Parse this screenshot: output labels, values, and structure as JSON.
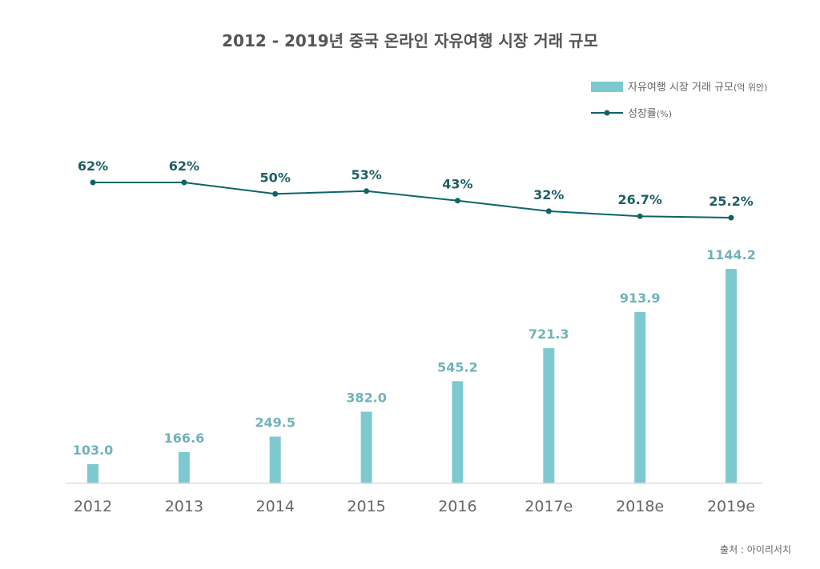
{
  "colors": {
    "bar": "#7ec9d0",
    "line": "#0e6468",
    "bar_label": "#6fb3b9",
    "line_label": "#1d5f64",
    "axis": "#dddddd",
    "text": "#555555"
  },
  "chart_data": {
    "type": "bar",
    "title": "2012 - 2019년 중국 온라인 자유여행 시장 거래 규모",
    "categories": [
      "2012",
      "2013",
      "2014",
      "2015",
      "2016",
      "2017e",
      "2018e",
      "2019e"
    ],
    "series": [
      {
        "name": "자유여행 시장 거래 규모",
        "unit": "(억 위안)",
        "type": "bar",
        "values": [
          103.0,
          166.6,
          249.5,
          382.0,
          545.2,
          721.3,
          913.9,
          1144.2
        ],
        "labels": [
          "103.0",
          "166.6",
          "249.5",
          "382.0",
          "545.2",
          "721.3",
          "913.9",
          "1144.2"
        ]
      },
      {
        "name": "성장률",
        "unit": "(%)",
        "type": "line",
        "values": [
          62,
          62,
          50,
          53,
          43,
          32,
          26.7,
          25.2
        ],
        "labels": [
          "62%",
          "62%",
          "50%",
          "53%",
          "43%",
          "32%",
          "26.7%",
          "25.2%"
        ]
      }
    ],
    "bar_ylim": [
      0,
      1200
    ],
    "line_ylim": [
      0,
      100
    ],
    "grid": false,
    "legend_position": "top-right",
    "source": "출처 : 아이리서치"
  }
}
